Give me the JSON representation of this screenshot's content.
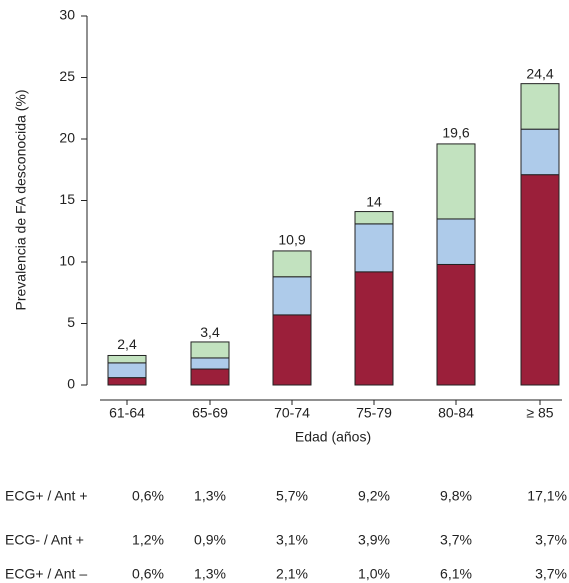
{
  "chart_data": {
    "type": "stacked_bar",
    "x_label": "Edad (años)",
    "y_label": "Prevalencia de FA desconocida (%)",
    "categories": [
      "61-64",
      "65-69",
      "70-74",
      "75-79",
      "80-84",
      "≥ 85"
    ],
    "series": [
      {
        "name": "ECG+ / Ant +",
        "color": "#9b1f3a",
        "values": [
          0.6,
          1.3,
          5.7,
          9.2,
          9.8,
          17.1
        ],
        "value_labels": [
          "0,6%",
          "1,3%",
          "5,7%",
          "9,2%",
          "9,8%",
          "17,1%"
        ]
      },
      {
        "name": "ECG- / Ant +",
        "color": "#aecbea",
        "values": [
          1.2,
          0.9,
          3.1,
          3.9,
          3.7,
          3.7
        ],
        "value_labels": [
          "1,2%",
          "0,9%",
          "3,1%",
          "3,9%",
          "3,7%",
          "3,7%"
        ]
      },
      {
        "name": "ECG+ / Ant –",
        "color": "#c2e2bf",
        "values": [
          0.6,
          1.3,
          2.1,
          1.0,
          6.1,
          3.7
        ],
        "value_labels": [
          "0,6%",
          "1,3%",
          "2,1%",
          "1,0%",
          "6,1%",
          "3,7%"
        ]
      }
    ],
    "totals": [
      2.4,
      3.4,
      10.9,
      14,
      19.6,
      24.4
    ],
    "total_labels": [
      "2,4",
      "3,4",
      "10,9",
      "14",
      "19,6",
      "24,4"
    ],
    "ylim": [
      0,
      30
    ],
    "yticks": [
      0,
      5,
      10,
      15,
      20,
      25,
      30
    ]
  }
}
